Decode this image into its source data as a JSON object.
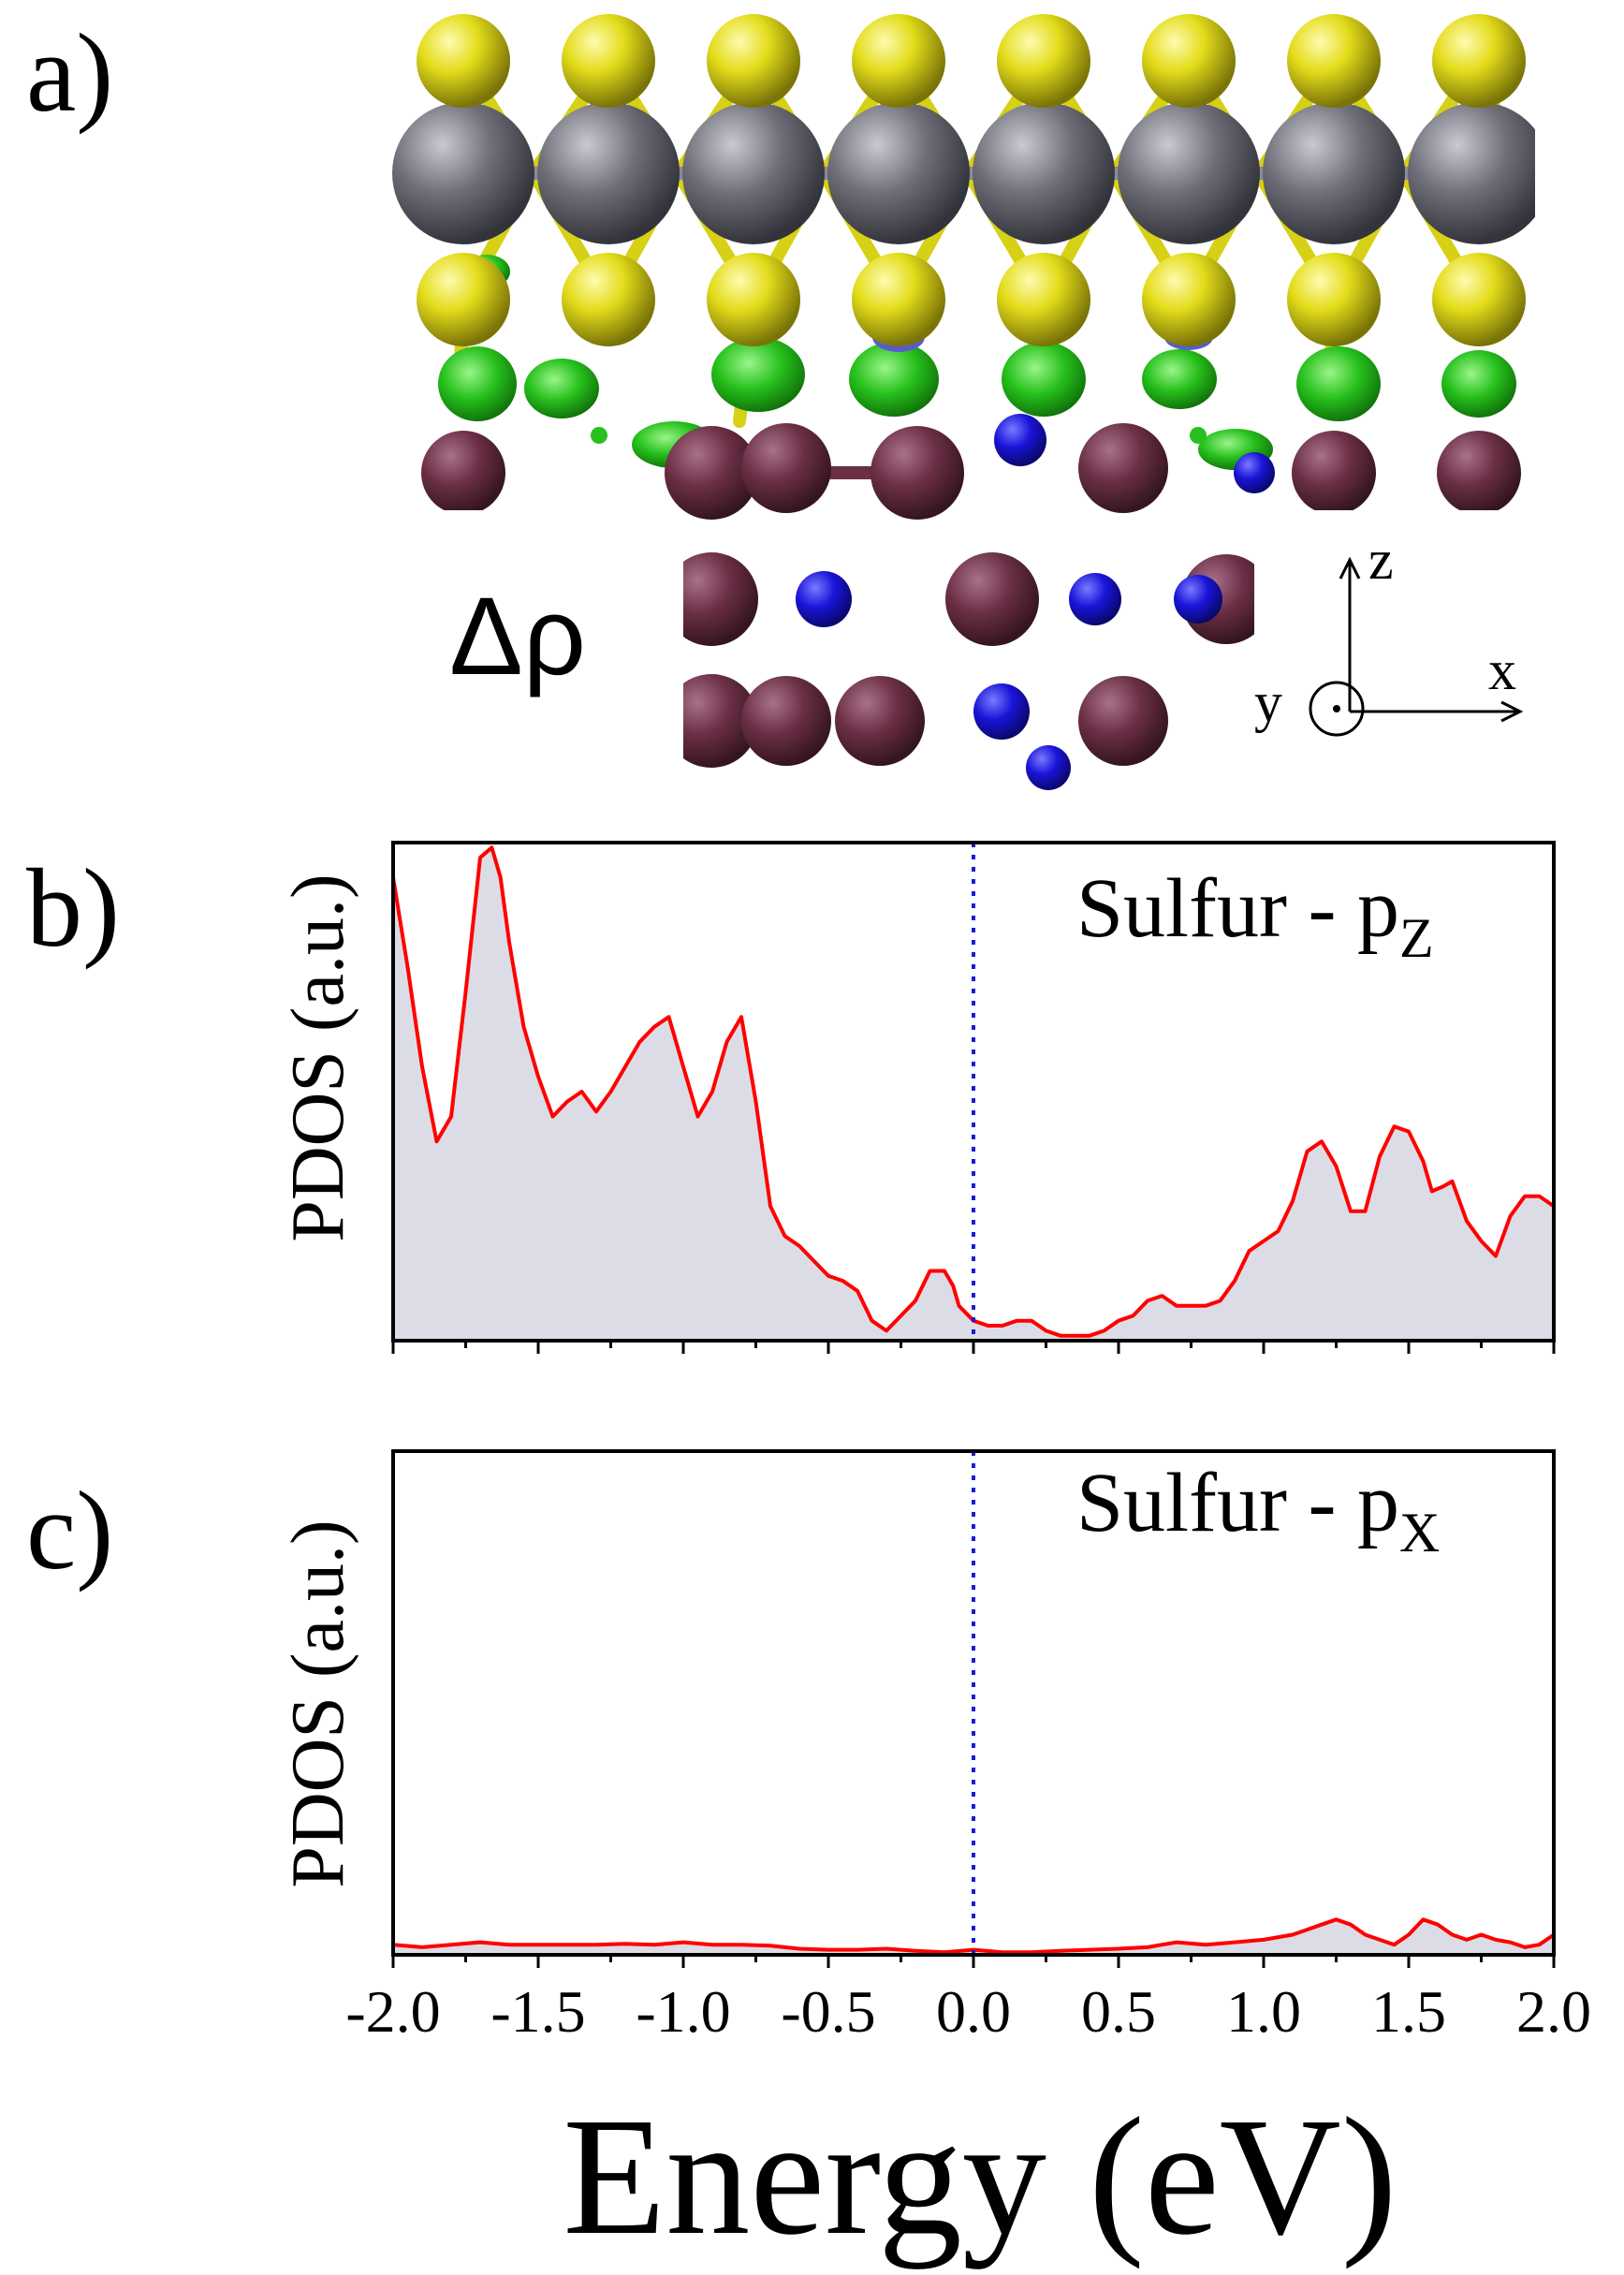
{
  "panel_a": {
    "label": "a)",
    "symbol": "Δρ",
    "axes": {
      "z": "z",
      "x": "x",
      "y": "y"
    },
    "colors": {
      "sulfur": "#e3dc1a",
      "metal": "#6e6e78",
      "cation": "#6b2f45",
      "anion": "#1a14d8",
      "density_positive": "#27c01c",
      "density_negative": "#5a5ad0"
    }
  },
  "chart_data": [
    {
      "panel_label": "b)",
      "type": "area",
      "ylabel": "PDOS (a.u.)",
      "annotation_main": "Sulfur - p",
      "annotation_sub": "Z",
      "xlim": [
        -2.0,
        2.0
      ],
      "ylim": [
        0,
        1.0
      ],
      "fermi_level": 0.0,
      "line_color": "#ff0000",
      "fill_color": "#dcdce6",
      "fermi_color": "#1a1ad8",
      "x": [
        -2.0,
        -1.95,
        -1.9,
        -1.85,
        -1.8,
        -1.75,
        -1.7,
        -1.66,
        -1.63,
        -1.6,
        -1.55,
        -1.5,
        -1.45,
        -1.4,
        -1.35,
        -1.3,
        -1.25,
        -1.2,
        -1.15,
        -1.1,
        -1.05,
        -1.0,
        -0.95,
        -0.9,
        -0.85,
        -0.8,
        -0.75,
        -0.7,
        -0.65,
        -0.6,
        -0.55,
        -0.5,
        -0.45,
        -0.4,
        -0.35,
        -0.3,
        -0.25,
        -0.2,
        -0.15,
        -0.1,
        -0.07,
        -0.05,
        0.0,
        0.05,
        0.1,
        0.15,
        0.2,
        0.25,
        0.3,
        0.35,
        0.4,
        0.45,
        0.5,
        0.55,
        0.6,
        0.65,
        0.7,
        0.75,
        0.8,
        0.85,
        0.9,
        0.95,
        1.0,
        1.05,
        1.1,
        1.15,
        1.2,
        1.25,
        1.3,
        1.35,
        1.4,
        1.45,
        1.5,
        1.55,
        1.58,
        1.62,
        1.65,
        1.7,
        1.75,
        1.8,
        1.85,
        1.9,
        1.95,
        2.0
      ],
      "y": [
        0.93,
        0.75,
        0.55,
        0.4,
        0.45,
        0.7,
        0.97,
        0.99,
        0.93,
        0.8,
        0.63,
        0.53,
        0.45,
        0.48,
        0.5,
        0.46,
        0.5,
        0.55,
        0.6,
        0.63,
        0.65,
        0.55,
        0.45,
        0.5,
        0.6,
        0.65,
        0.48,
        0.27,
        0.21,
        0.19,
        0.16,
        0.13,
        0.12,
        0.1,
        0.04,
        0.02,
        0.05,
        0.08,
        0.14,
        0.14,
        0.11,
        0.07,
        0.04,
        0.03,
        0.03,
        0.04,
        0.04,
        0.02,
        0.01,
        0.01,
        0.01,
        0.02,
        0.04,
        0.05,
        0.08,
        0.09,
        0.07,
        0.07,
        0.07,
        0.08,
        0.12,
        0.18,
        0.2,
        0.22,
        0.28,
        0.38,
        0.4,
        0.35,
        0.26,
        0.26,
        0.37,
        0.43,
        0.42,
        0.36,
        0.3,
        0.31,
        0.32,
        0.24,
        0.2,
        0.17,
        0.25,
        0.29,
        0.29,
        0.27
      ]
    },
    {
      "panel_label": "c)",
      "type": "area",
      "ylabel": "PDOS (a.u.)",
      "xlabel": "Energy (eV)",
      "annotation_main": "Sulfur - p",
      "annotation_sub": "X",
      "xlim": [
        -2.0,
        2.0
      ],
      "ylim": [
        0,
        1.0
      ],
      "fermi_level": 0.0,
      "x_ticks": [
        "-2.0",
        "-1.5",
        "-1.0",
        "-0.5",
        "0.0",
        "0.5",
        "1.0",
        "1.5",
        "2.0"
      ],
      "line_color": "#ff0000",
      "fill_color": "#dcdce6",
      "fermi_color": "#1a1ad8",
      "x": [
        -2.0,
        -1.9,
        -1.8,
        -1.7,
        -1.6,
        -1.5,
        -1.4,
        -1.3,
        -1.2,
        -1.1,
        -1.0,
        -0.9,
        -0.8,
        -0.7,
        -0.6,
        -0.5,
        -0.4,
        -0.3,
        -0.2,
        -0.1,
        0.0,
        0.1,
        0.2,
        0.3,
        0.4,
        0.5,
        0.6,
        0.65,
        0.7,
        0.8,
        0.9,
        1.0,
        1.1,
        1.15,
        1.2,
        1.25,
        1.3,
        1.35,
        1.4,
        1.45,
        1.5,
        1.55,
        1.6,
        1.65,
        1.7,
        1.75,
        1.8,
        1.85,
        1.9,
        1.95,
        2.0
      ],
      "y": [
        0.02,
        0.015,
        0.02,
        0.025,
        0.02,
        0.02,
        0.02,
        0.02,
        0.022,
        0.02,
        0.025,
        0.02,
        0.02,
        0.018,
        0.012,
        0.01,
        0.01,
        0.012,
        0.008,
        0.005,
        0.01,
        0.005,
        0.005,
        0.008,
        0.01,
        0.012,
        0.015,
        0.02,
        0.025,
        0.02,
        0.025,
        0.03,
        0.04,
        0.05,
        0.06,
        0.07,
        0.06,
        0.04,
        0.03,
        0.02,
        0.04,
        0.07,
        0.06,
        0.04,
        0.03,
        0.04,
        0.03,
        0.025,
        0.015,
        0.02,
        0.04
      ]
    }
  ]
}
